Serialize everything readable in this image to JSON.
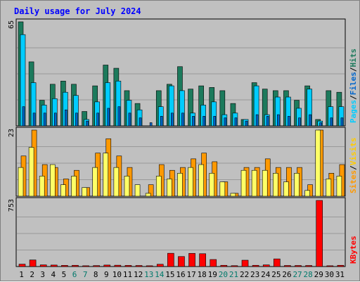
{
  "chart_data": {
    "type": "bar",
    "title": "Daily usage for July 2024",
    "categories": [
      "1",
      "2",
      "3",
      "4",
      "5",
      "6",
      "7",
      "8",
      "9",
      "10",
      "11",
      "12",
      "13",
      "14",
      "15",
      "16",
      "17",
      "18",
      "19",
      "20",
      "21",
      "22",
      "23",
      "24",
      "25",
      "26",
      "27",
      "28",
      "29",
      "30",
      "31"
    ],
    "weekend_days": [
      "6",
      "7",
      "13",
      "14",
      "20",
      "21",
      "27",
      "28"
    ],
    "panels": [
      {
        "name": "hits-files-pages",
        "ymax_label": "65",
        "ymax": 65,
        "axis_label_parts": [
          "Pages",
          "/",
          "Files",
          "/",
          "Hits"
        ],
        "series": [
          {
            "name": "Hits",
            "color": "#1c7a5c",
            "values": [
              65,
              40,
              16,
              26,
              28,
              26,
              9,
              25,
              38,
              36,
              22,
              14,
              0,
              22,
              26,
              37,
              23,
              25,
              24,
              22,
              14,
              4,
              27,
              23,
              22,
              22,
              16,
              25,
              4,
              22,
              21
            ]
          },
          {
            "name": "Files",
            "color": "#00ccff",
            "values": [
              57,
              27,
              13,
              17,
              21,
              19,
              4,
              15,
              27,
              28,
              16,
              10,
              0,
              12,
              25,
              22,
              8,
              13,
              15,
              7,
              8,
              4,
              25,
              7,
              18,
              18,
              11,
              23,
              3,
              12,
              12
            ]
          },
          {
            "name": "Pages",
            "color": "#0066cc",
            "values": [
              12,
              8,
              8,
              8,
              10,
              8,
              3,
              8,
              11,
              12,
              8,
              5,
              2,
              6,
              8,
              8,
              6,
              6,
              6,
              5,
              5,
              3,
              7,
              6,
              7,
              6,
              5,
              7,
              2,
              5,
              5
            ]
          }
        ]
      },
      {
        "name": "visits-sites",
        "ymax_label": "23",
        "ymax": 23,
        "axis_label_parts": [
          "Sites",
          "/",
          "Visits"
        ],
        "series": [
          {
            "name": "Visits",
            "color": "#ff9900",
            "values": [
              14,
              23,
              11,
              10,
              6,
              9,
              3,
              15,
              20,
              14,
              10,
              0,
              4,
              11,
              9,
              10,
              13,
              15,
              12,
              5,
              1,
              10,
              10,
              13,
              10,
              10,
              10,
              4,
              23,
              8,
              11
            ]
          },
          {
            "name": "Sites",
            "color": "#ffff66",
            "values": [
              10,
              17,
              7,
              11,
              4,
              7,
              3,
              10,
              15,
              10,
              7,
              4,
              1,
              7,
              6,
              8,
              10,
              11,
              8,
              5,
              1,
              9,
              9,
              9,
              8,
              5,
              8,
              2,
              23,
              6,
              7
            ]
          }
        ]
      },
      {
        "name": "kbytes",
        "ymax_label": "753",
        "ymax": 753,
        "axis_label_parts": [
          "KBytes"
        ],
        "series": [
          {
            "name": "KBytes",
            "color": "#ff0000",
            "values": [
              27,
              75,
              19,
              17,
              13,
              14,
              9,
              11,
              17,
              15,
              13,
              12,
              9,
              26,
              151,
              114,
              150,
              146,
              80,
              14,
              10,
              72,
              14,
              19,
              87,
              12,
              12,
              12,
              753,
              9,
              14
            ]
          }
        ]
      }
    ]
  },
  "colors": {
    "background": "#c0c0c0",
    "panel_bg": "#c0c0c0",
    "grid": "#999999",
    "title": "#0000ff",
    "label": "#000000",
    "weekend_label": "#00796b",
    "axis_sep": "#000000"
  }
}
